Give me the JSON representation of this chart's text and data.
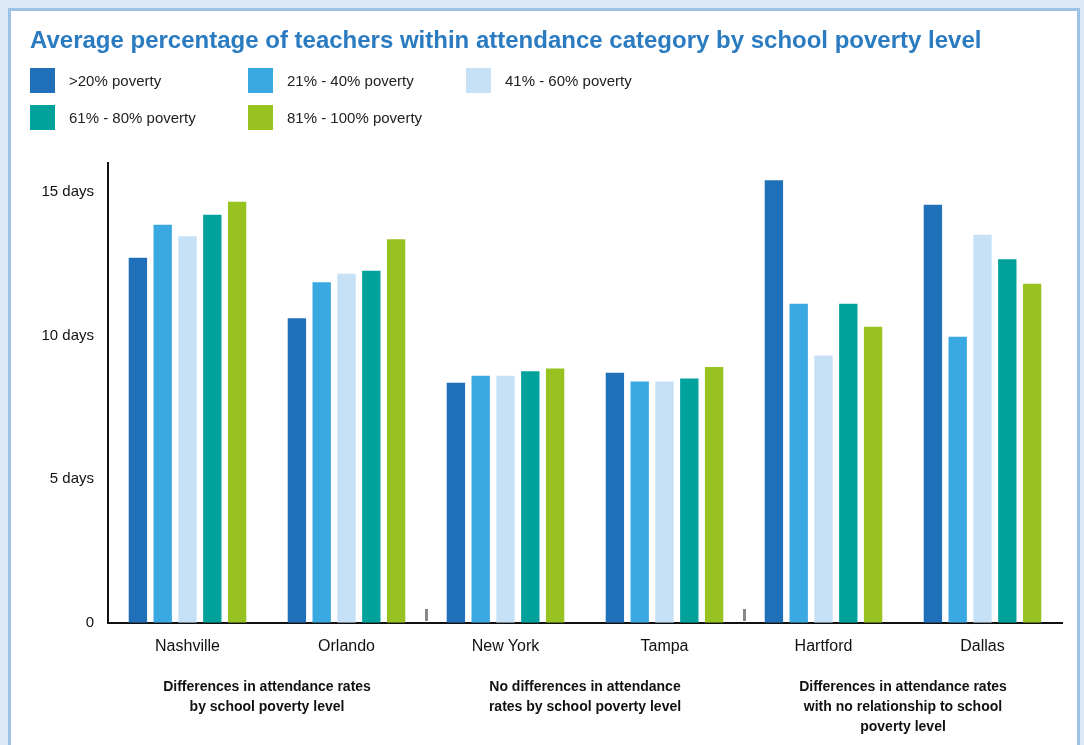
{
  "chart_data": {
    "type": "bar",
    "title": "Average percentage of teachers within attendance category by school poverty level",
    "categories": [
      "Nashville",
      "Orlando",
      "New York",
      "Tampa",
      "Hartford",
      "Dallas"
    ],
    "series": [
      {
        "name": ">20% poverty",
        "color": "#1f70b9",
        "values": [
          12.7,
          10.6,
          8.35,
          8.7,
          15.4,
          14.55
        ]
      },
      {
        "name": "21% - 40% poverty",
        "color": "#3aa8e1",
        "values": [
          13.85,
          11.85,
          8.6,
          8.4,
          11.1,
          9.95
        ]
      },
      {
        "name": "41% - 60% poverty",
        "color": "#c6e0f6",
        "values": [
          13.45,
          12.15,
          8.6,
          8.4,
          9.3,
          13.5
        ]
      },
      {
        "name": "61% - 80% poverty",
        "color": "#00a29b",
        "values": [
          14.2,
          12.25,
          8.75,
          8.5,
          11.1,
          12.65
        ]
      },
      {
        "name": "81% - 100% poverty",
        "color": "#98c21f",
        "values": [
          14.65,
          13.35,
          8.85,
          8.9,
          10.3,
          11.8
        ]
      }
    ],
    "ylim": [
      0,
      16
    ],
    "yticks": [
      {
        "value": 0,
        "label": "0"
      },
      {
        "value": 5,
        "label": "5 days"
      },
      {
        "value": 10,
        "label": "10 days"
      },
      {
        "value": 15,
        "label": "15 days"
      }
    ],
    "grid": false,
    "legend": "top left",
    "annotations": [
      "Differences in attendance rates by school poverty level",
      "No differences in attendance rates by school poverty level",
      "Differences in attendance rates with no relationship to school poverty level"
    ]
  }
}
